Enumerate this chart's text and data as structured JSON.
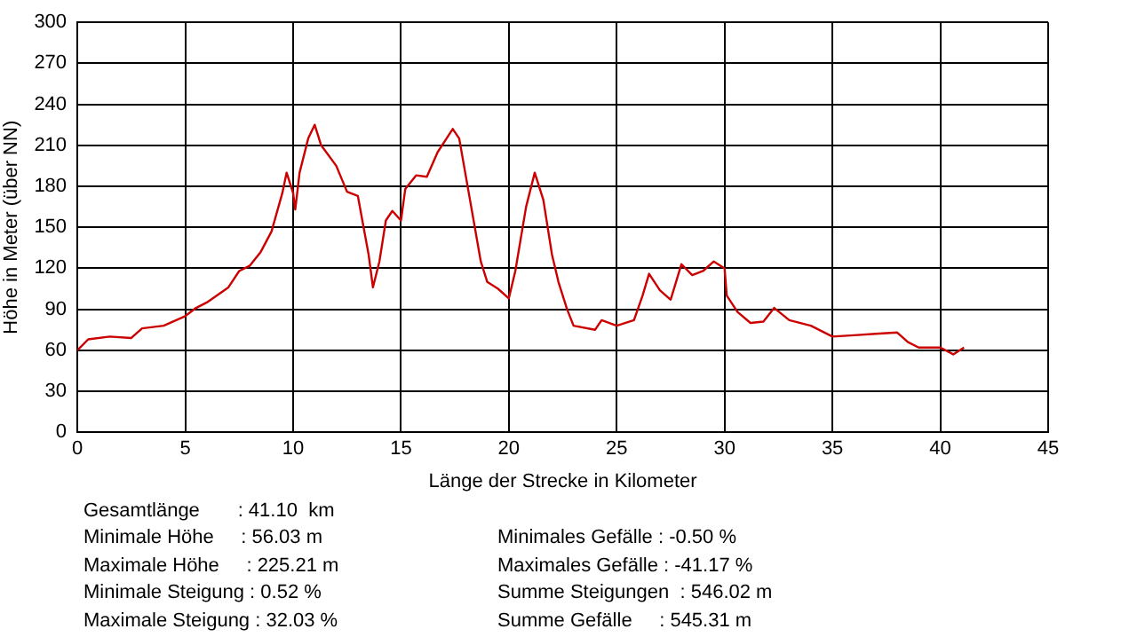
{
  "chart_data": {
    "type": "line",
    "xlabel": "Länge der Strecke in Kilometer",
    "ylabel": "Höhe in Meter (über NN)",
    "xlim": [
      0,
      45
    ],
    "xticks": [
      0,
      5,
      10,
      15,
      20,
      25,
      30,
      35,
      40,
      45
    ],
    "ylim": [
      0,
      300
    ],
    "yticks": [
      0,
      30,
      60,
      90,
      120,
      150,
      180,
      210,
      240,
      270,
      300
    ],
    "grid": true,
    "legend": false,
    "marker": "none",
    "line_style": "solid",
    "series": [
      {
        "color": "#cc0000",
        "x": [
          0,
          0.5,
          1.5,
          2.5,
          3,
          4,
          5,
          5.5,
          6,
          7,
          7.5,
          8,
          8.5,
          9,
          9.5,
          9.7,
          10,
          10.1,
          10.3,
          10.7,
          11,
          11.3,
          12,
          12.5,
          13,
          13.5,
          13.7,
          14,
          14.3,
          14.6,
          15,
          15.2,
          15.7,
          16.2,
          16.7,
          17.4,
          17.7,
          18.2,
          18.7,
          19,
          19.5,
          20,
          20.3,
          20.8,
          21.2,
          21.6,
          22,
          22.3,
          22.7,
          23,
          24,
          24.3,
          25,
          25.8,
          26.2,
          26.5,
          27,
          27.5,
          28,
          28.5,
          29,
          29.5,
          30,
          30.1,
          30.6,
          31.2,
          31.8,
          32.3,
          33,
          34,
          35,
          36,
          37,
          38,
          38.5,
          39,
          40,
          40.6,
          41.1
        ],
        "values": [
          60,
          68,
          70,
          69,
          76,
          78,
          85,
          91,
          95,
          106,
          118,
          122,
          132,
          147,
          175,
          190,
          175,
          163,
          190,
          215,
          225,
          210,
          195,
          176,
          173,
          130,
          106,
          125,
          155,
          162,
          155,
          178,
          188,
          187,
          205,
          222,
          215,
          170,
          125,
          110,
          105,
          98,
          118,
          165,
          190,
          170,
          130,
          110,
          90,
          78,
          75,
          82,
          78,
          82,
          100,
          116,
          104,
          97,
          123,
          115,
          118,
          125,
          120,
          100,
          88,
          80,
          81,
          91,
          82,
          78,
          70,
          71,
          72,
          73,
          66,
          62,
          62,
          57,
          62
        ]
      }
    ],
    "annotations": [
      "Gesamtlänge       : 41.10  km",
      "Minimale Höhe     : 56.03 m",
      "Maximale Höhe     : 225.21 m",
      "Minimale Steigung : 0.52 %",
      "Maximale Steigung : 32.03 %",
      "Minimales Gefälle : -0.50 %",
      "Maximales Gefälle : -41.17 %",
      "Summe Steigungen  : 546.02 m",
      "Summe Gefälle     : 545.31 m"
    ]
  }
}
